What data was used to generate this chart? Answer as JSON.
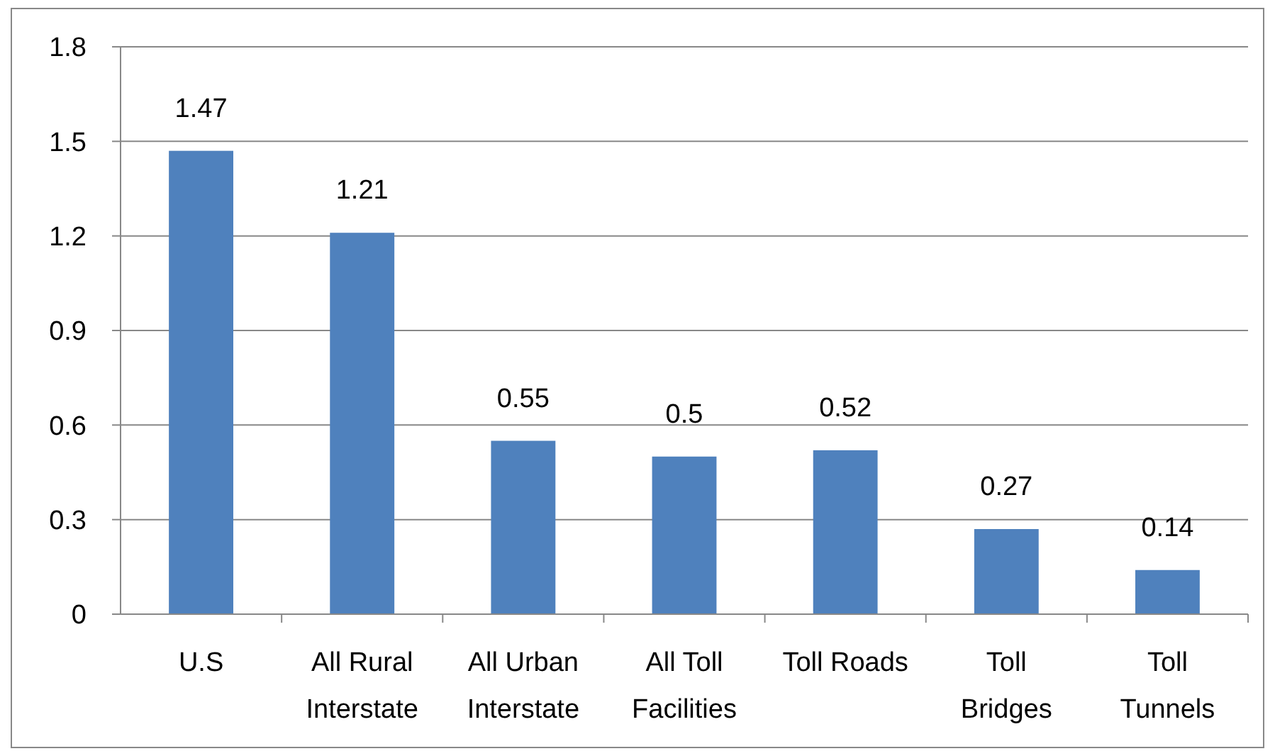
{
  "chart_data": {
    "type": "bar",
    "categories": [
      "U.S",
      "All Rural Interstate",
      "All Urban Interstate",
      "All Toll Facilities",
      "Toll Roads",
      "Toll Bridges",
      "Toll Tunnels"
    ],
    "values": [
      1.47,
      1.21,
      0.55,
      0.5,
      0.52,
      0.27,
      0.14
    ],
    "color": "#4f81bd",
    "ylim": [
      0,
      1.8
    ],
    "yticks": [
      0,
      0.3,
      0.6,
      0.9,
      1.2,
      1.5,
      1.8
    ],
    "grid": "y",
    "data_labels": true
  }
}
